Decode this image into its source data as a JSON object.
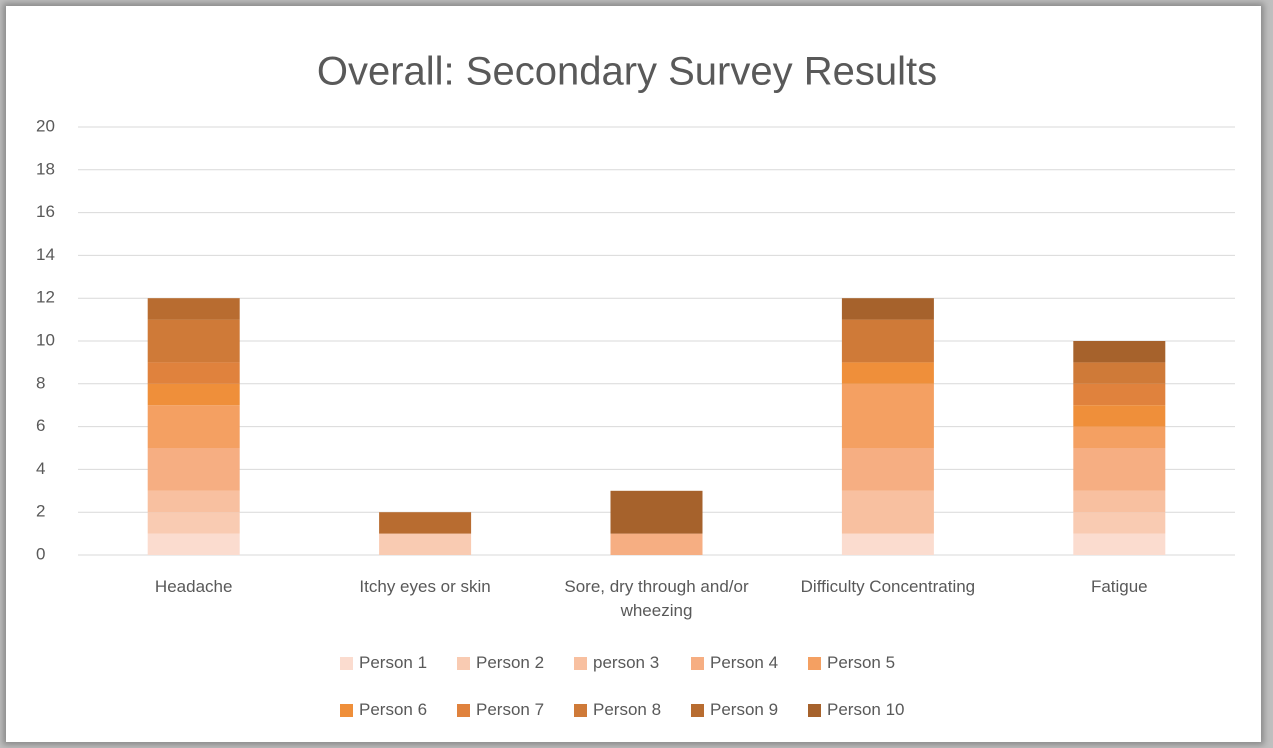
{
  "chart_data": {
    "type": "stacked_bar",
    "title": "Overall: Secondary Survey Results",
    "categories": [
      "Headache",
      "Itchy eyes or skin",
      "Sore, dry through and/or wheezing",
      "Difficulty Concentrating",
      "Fatigue"
    ],
    "series": [
      {
        "name": "Person 1",
        "color": "#fbdccf",
        "values": [
          1,
          0,
          0,
          1,
          1
        ]
      },
      {
        "name": "Person 2",
        "color": "#f9cbb2",
        "values": [
          1,
          1,
          0,
          0,
          1
        ]
      },
      {
        "name": "person 3",
        "color": "#f8c0a0",
        "values": [
          1,
          0,
          0,
          2,
          1
        ]
      },
      {
        "name": "Person 4",
        "color": "#f6ae82",
        "values": [
          2,
          0,
          1,
          2,
          2
        ]
      },
      {
        "name": "Person 5",
        "color": "#f4a062",
        "values": [
          2,
          0,
          0,
          3,
          1
        ]
      },
      {
        "name": "Person 6",
        "color": "#ef8f3a",
        "values": [
          1,
          0,
          0,
          1,
          1
        ]
      },
      {
        "name": "Person 7",
        "color": "#e0823d",
        "values": [
          1,
          0,
          0,
          0,
          1
        ]
      },
      {
        "name": "Person 8",
        "color": "#cf7a38",
        "values": [
          2,
          0,
          0,
          2,
          1
        ]
      },
      {
        "name": "Person 9",
        "color": "#b86c30",
        "values": [
          1,
          1,
          0,
          0,
          0
        ]
      },
      {
        "name": "Person 10",
        "color": "#a6622c",
        "values": [
          0,
          0,
          2,
          1,
          1
        ]
      }
    ],
    "ylim": [
      0,
      20
    ],
    "yticks": [
      0,
      2,
      4,
      6,
      8,
      10,
      12,
      14,
      16,
      18,
      20
    ],
    "grid": true
  }
}
